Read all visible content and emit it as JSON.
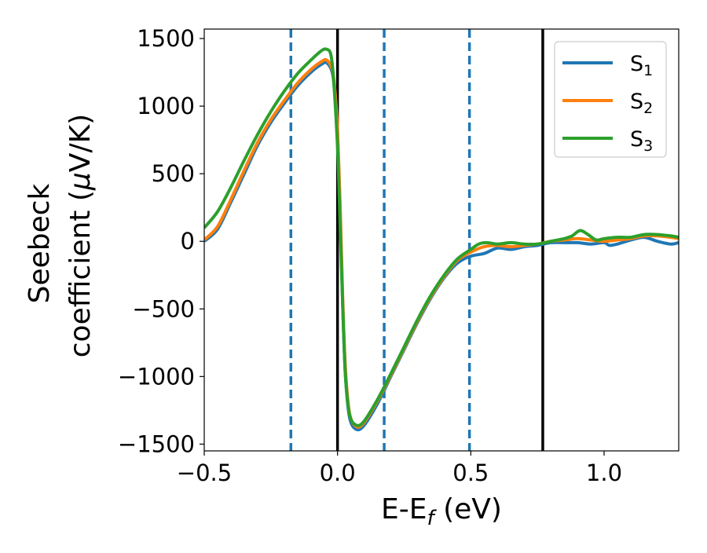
{
  "chart_data": {
    "type": "line",
    "xlabel": "E-E",
    "xlabel_sub": "f",
    "xlabel_unit": " (eV)",
    "ylabel_line1": "Seebeck",
    "ylabel_line2_pre": "coefficient  (",
    "ylabel_mu": "μ",
    "ylabel_line2_post": "V/K)",
    "xlim": [
      -0.5,
      1.28
    ],
    "ylim": [
      -1550,
      1570
    ],
    "xticks": [
      -0.5,
      0.0,
      0.5,
      1.0
    ],
    "xtick_labels": [
      "−0.5",
      "0.0",
      "0.5",
      "1.0"
    ],
    "yticks": [
      1500,
      1000,
      500,
      0,
      -500,
      -1000,
      -1500
    ],
    "ytick_labels": [
      "1500",
      "1000",
      "500",
      "0",
      "−500",
      "−1000",
      "−1500"
    ],
    "grid": false,
    "legend_position": "top-right",
    "vlines_dashed": [
      -0.175,
      0.175,
      0.495
    ],
    "vlines_solid": [
      0.0,
      0.77
    ],
    "vline_dashed_color": "#1f77b4",
    "vline_solid_color": "#000000",
    "series": [
      {
        "name": "S",
        "sub": "1",
        "color": "#1f77b4",
        "points": [
          [
            -0.5,
            0
          ],
          [
            -0.45,
            90
          ],
          [
            -0.4,
            290
          ],
          [
            -0.35,
            500
          ],
          [
            -0.3,
            710
          ],
          [
            -0.25,
            880
          ],
          [
            -0.2,
            1020
          ],
          [
            -0.15,
            1150
          ],
          [
            -0.1,
            1250
          ],
          [
            -0.06,
            1310
          ],
          [
            -0.04,
            1320
          ],
          [
            -0.02,
            1250
          ],
          [
            -0.01,
            1100
          ],
          [
            0.0,
            800
          ],
          [
            0.01,
            200
          ],
          [
            0.02,
            -500
          ],
          [
            0.03,
            -1000
          ],
          [
            0.045,
            -1300
          ],
          [
            0.07,
            -1390
          ],
          [
            0.1,
            -1360
          ],
          [
            0.15,
            -1200
          ],
          [
            0.2,
            -1000
          ],
          [
            0.25,
            -800
          ],
          [
            0.3,
            -600
          ],
          [
            0.35,
            -420
          ],
          [
            0.4,
            -270
          ],
          [
            0.45,
            -160
          ],
          [
            0.5,
            -110
          ],
          [
            0.55,
            -90
          ],
          [
            0.6,
            -50
          ],
          [
            0.65,
            -60
          ],
          [
            0.7,
            -40
          ],
          [
            0.75,
            -30
          ],
          [
            0.8,
            -10
          ],
          [
            0.85,
            -10
          ],
          [
            0.9,
            -10
          ],
          [
            0.95,
            -20
          ],
          [
            1.0,
            -10
          ],
          [
            1.02,
            -30
          ],
          [
            1.05,
            -20
          ],
          [
            1.1,
            10
          ],
          [
            1.15,
            30
          ],
          [
            1.2,
            0
          ],
          [
            1.25,
            -20
          ],
          [
            1.28,
            -10
          ]
        ]
      },
      {
        "name": "S",
        "sub": "2",
        "color": "#ff7f0e",
        "points": [
          [
            -0.5,
            10
          ],
          [
            -0.45,
            110
          ],
          [
            -0.4,
            310
          ],
          [
            -0.35,
            525
          ],
          [
            -0.3,
            730
          ],
          [
            -0.25,
            900
          ],
          [
            -0.2,
            1040
          ],
          [
            -0.15,
            1170
          ],
          [
            -0.1,
            1270
          ],
          [
            -0.06,
            1330
          ],
          [
            -0.04,
            1340
          ],
          [
            -0.02,
            1270
          ],
          [
            -0.01,
            1120
          ],
          [
            0.0,
            830
          ],
          [
            0.01,
            250
          ],
          [
            0.02,
            -450
          ],
          [
            0.03,
            -950
          ],
          [
            0.045,
            -1270
          ],
          [
            0.07,
            -1370
          ],
          [
            0.1,
            -1340
          ],
          [
            0.15,
            -1180
          ],
          [
            0.2,
            -990
          ],
          [
            0.25,
            -790
          ],
          [
            0.3,
            -590
          ],
          [
            0.35,
            -410
          ],
          [
            0.4,
            -260
          ],
          [
            0.45,
            -140
          ],
          [
            0.5,
            -80
          ],
          [
            0.55,
            -40
          ],
          [
            0.6,
            -30
          ],
          [
            0.65,
            -40
          ],
          [
            0.7,
            -30
          ],
          [
            0.75,
            -20
          ],
          [
            0.8,
            0
          ],
          [
            0.85,
            10
          ],
          [
            0.9,
            20
          ],
          [
            0.95,
            10
          ],
          [
            1.0,
            0
          ],
          [
            1.05,
            10
          ],
          [
            1.1,
            20
          ],
          [
            1.15,
            40
          ],
          [
            1.2,
            40
          ],
          [
            1.25,
            30
          ],
          [
            1.28,
            20
          ]
        ]
      },
      {
        "name": "S",
        "sub": "3",
        "color": "#2ca02c",
        "points": [
          [
            -0.5,
            100
          ],
          [
            -0.45,
            220
          ],
          [
            -0.4,
            400
          ],
          [
            -0.35,
            600
          ],
          [
            -0.3,
            790
          ],
          [
            -0.25,
            960
          ],
          [
            -0.2,
            1110
          ],
          [
            -0.15,
            1240
          ],
          [
            -0.1,
            1340
          ],
          [
            -0.06,
            1410
          ],
          [
            -0.04,
            1420
          ],
          [
            -0.025,
            1380
          ],
          [
            -0.015,
            1200
          ],
          [
            0.0,
            700
          ],
          [
            0.01,
            100
          ],
          [
            0.02,
            -500
          ],
          [
            0.03,
            -1000
          ],
          [
            0.045,
            -1280
          ],
          [
            0.07,
            -1360
          ],
          [
            0.1,
            -1330
          ],
          [
            0.15,
            -1170
          ],
          [
            0.2,
            -980
          ],
          [
            0.25,
            -780
          ],
          [
            0.3,
            -580
          ],
          [
            0.35,
            -400
          ],
          [
            0.4,
            -250
          ],
          [
            0.45,
            -130
          ],
          [
            0.5,
            -60
          ],
          [
            0.53,
            -20
          ],
          [
            0.56,
            -10
          ],
          [
            0.6,
            -20
          ],
          [
            0.65,
            -10
          ],
          [
            0.7,
            -20
          ],
          [
            0.75,
            -20
          ],
          [
            0.8,
            0
          ],
          [
            0.85,
            20
          ],
          [
            0.88,
            40
          ],
          [
            0.91,
            80
          ],
          [
            0.94,
            50
          ],
          [
            0.97,
            10
          ],
          [
            1.0,
            20
          ],
          [
            1.05,
            30
          ],
          [
            1.1,
            30
          ],
          [
            1.15,
            50
          ],
          [
            1.2,
            50
          ],
          [
            1.25,
            40
          ],
          [
            1.28,
            30
          ]
        ]
      }
    ]
  }
}
